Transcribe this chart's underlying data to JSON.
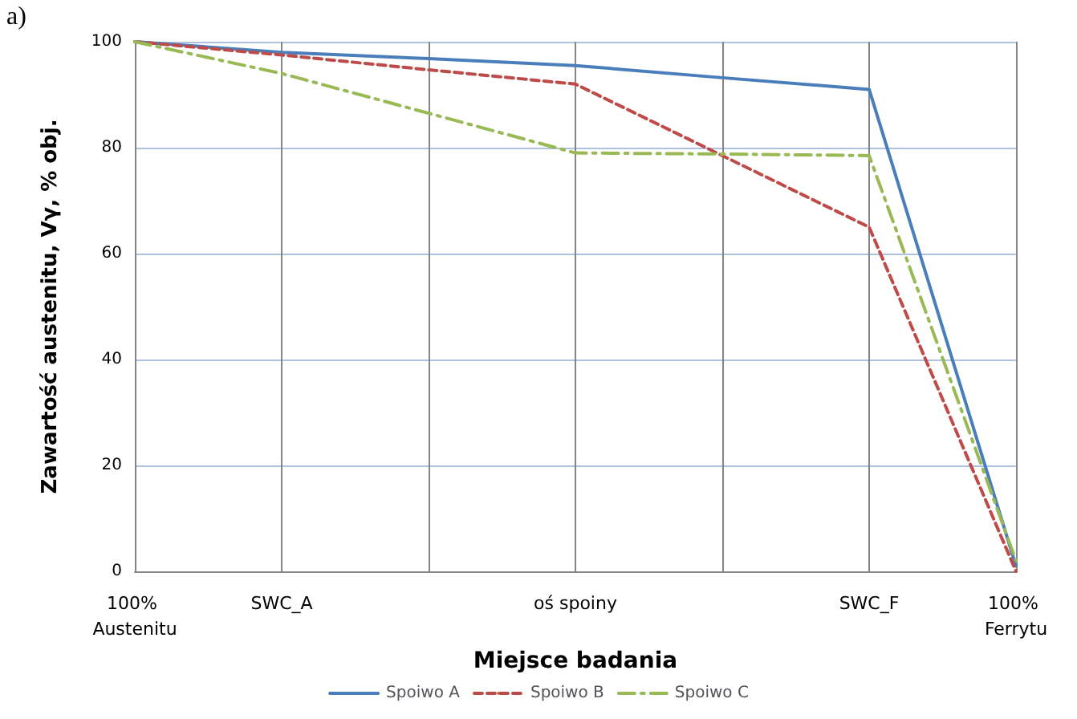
{
  "chart_data": {
    "type": "line",
    "xlabel": "Miejsce badania",
    "ylabel": "Zawartość austenitu, Vγ, % obj.",
    "annotations": [
      "a)"
    ],
    "categories": [
      "100% Austenitu",
      "SWC_A",
      null,
      "oś spoiny",
      null,
      "SWC_F",
      "100% Ferrytu"
    ],
    "ylim": [
      0,
      100
    ],
    "yticks": [
      0,
      20,
      40,
      60,
      80,
      100
    ],
    "grid": true,
    "legend": "bottom",
    "marker": "none",
    "series": [
      {
        "name": "Spoiwo A",
        "color": "#4a7ebb",
        "values": [
          100,
          98,
          96.8,
          95.5,
          93.2,
          91,
          1
        ],
        "line_style": "solid"
      },
      {
        "name": "Spoiwo B",
        "color": "#be4b48",
        "values": [
          100,
          97.5,
          94.7,
          92,
          78.5,
          65,
          0
        ],
        "line_style": "dashed"
      },
      {
        "name": "Spoiwo C",
        "color": "#98b954",
        "values": [
          100,
          94,
          86.5,
          79,
          78.8,
          78.5,
          2
        ],
        "line_style": "dashdot"
      }
    ]
  }
}
